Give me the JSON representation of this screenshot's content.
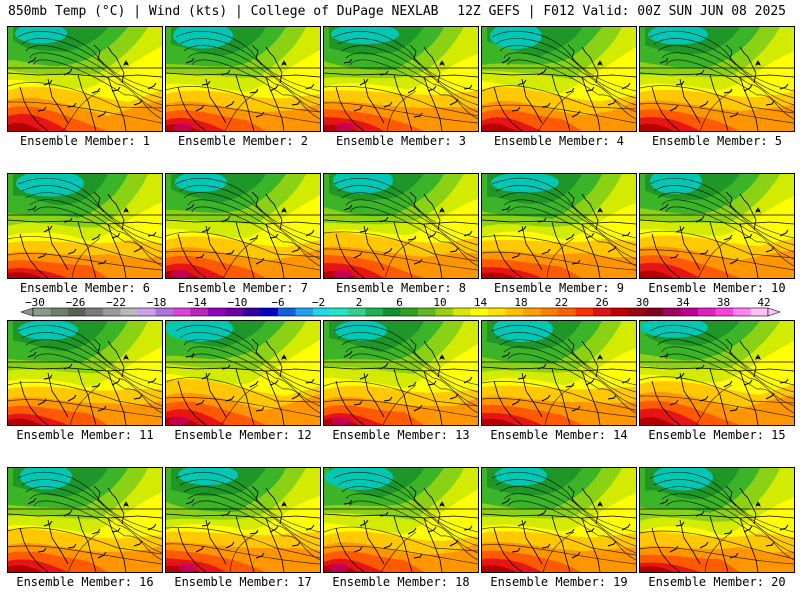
{
  "header": {
    "left": "850mb Temp (°C) | Wind (kts) | College of DuPage NEXLAB",
    "right": "12Z GEFS | F012 Valid: 00Z SUN JUN 08 2025"
  },
  "panel_label_prefix": "Ensemble Member: ",
  "members": [
    {
      "label": "Ensemble Member: 1"
    },
    {
      "label": "Ensemble Member: 2"
    },
    {
      "label": "Ensemble Member: 3"
    },
    {
      "label": "Ensemble Member: 4"
    },
    {
      "label": "Ensemble Member: 5"
    },
    {
      "label": "Ensemble Member: 6"
    },
    {
      "label": "Ensemble Member: 7"
    },
    {
      "label": "Ensemble Member: 8"
    },
    {
      "label": "Ensemble Member: 9"
    },
    {
      "label": "Ensemble Member: 10"
    },
    {
      "label": "Ensemble Member: 11"
    },
    {
      "label": "Ensemble Member: 12"
    },
    {
      "label": "Ensemble Member: 13"
    },
    {
      "label": "Ensemble Member: 14"
    },
    {
      "label": "Ensemble Member: 15"
    },
    {
      "label": "Ensemble Member: 16"
    },
    {
      "label": "Ensemble Member: 17"
    },
    {
      "label": "Ensemble Member: 18"
    },
    {
      "label": "Ensemble Member: 19"
    },
    {
      "label": "Ensemble Member: 20"
    }
  ],
  "colorbar": {
    "tick_labels": [
      "−30",
      "−26",
      "−22",
      "−18",
      "−14",
      "−10",
      "−6",
      "−2",
      "2",
      "6",
      "10",
      "14",
      "18",
      "22",
      "26",
      "30",
      "34",
      "38",
      "42"
    ],
    "colors": [
      "#8a9a8a",
      "#6f7f6f",
      "#566456",
      "#7a7a7a",
      "#9a9a9a",
      "#b8b8b8",
      "#c8a0e8",
      "#b070e0",
      "#e040e0",
      "#c020c0",
      "#9000c0",
      "#6a00a8",
      "#3000a0",
      "#0000c8",
      "#1060e0",
      "#20a0f0",
      "#20d8e8",
      "#20e8c0",
      "#30d090",
      "#20b050",
      "#109030",
      "#30a020",
      "#60b820",
      "#98d010",
      "#d8e800",
      "#ffff00",
      "#ffe000",
      "#ffc000",
      "#ffa000",
      "#ff8000",
      "#ff6000",
      "#ff3000",
      "#e01010",
      "#c00000",
      "#a00010",
      "#800020",
      "#a00060",
      "#c00090",
      "#e020c0",
      "#ff40e0",
      "#ff80f0",
      "#ffc0f8"
    ]
  },
  "map_colors": {
    "cold": "#00c8b4",
    "green_dark": "#1e9628",
    "green_mid": "#3cb428",
    "green_light": "#8cd214",
    "yellow_green": "#d2eb00",
    "yellow": "#ffff00",
    "orange_light": "#ffc800",
    "orange": "#ff9600",
    "red_orange": "#ff5a00",
    "red": "#e61414",
    "dark_red": "#b40000",
    "magenta": "#c80064"
  }
}
